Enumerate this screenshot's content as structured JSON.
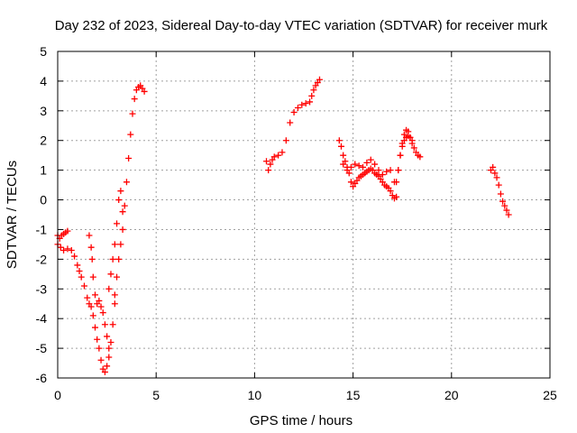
{
  "chart_data": {
    "type": "scatter",
    "title": "Day 232 of 2023, Sidereal Day-to-day VTEC variation (SDTVAR) for receiver murk",
    "xlabel": "GPS time / hours",
    "ylabel": "SDTVAR / TECUs",
    "xlim": [
      0,
      25
    ],
    "ylim": [
      -6,
      5
    ],
    "xticks": [
      0,
      5,
      10,
      15,
      20,
      25
    ],
    "yticks": [
      -6,
      -5,
      -4,
      -3,
      -2,
      -1,
      0,
      1,
      2,
      3,
      4,
      5
    ],
    "grid": true,
    "legend": "none",
    "marker": "plus",
    "color": "#ff0000",
    "segments": [
      {
        "x": [
          0.0,
          0.1,
          0.2,
          0.3,
          0.4,
          0.5
        ],
        "y": [
          -1.2,
          -1.3,
          -1.2,
          -1.15,
          -1.1,
          -1.05
        ]
      },
      {
        "x": [
          0.0,
          0.15,
          0.3,
          0.5,
          0.7,
          0.85,
          1.0,
          1.1,
          1.2,
          1.35,
          1.5,
          1.6,
          1.7,
          1.8,
          1.9,
          2.0,
          2.1,
          2.2,
          2.3,
          2.4,
          2.5,
          2.6
        ],
        "y": [
          -1.5,
          -1.6,
          -1.7,
          -1.65,
          -1.7,
          -1.9,
          -2.2,
          -2.4,
          -2.6,
          -2.9,
          -3.3,
          -3.5,
          -3.6,
          -3.9,
          -4.3,
          -4.7,
          -5.0,
          -5.4,
          -5.7,
          -5.8,
          -5.6,
          -5.3
        ]
      },
      {
        "x": [
          1.6,
          1.7,
          1.75,
          1.8,
          1.9,
          2.0,
          2.1,
          2.2,
          2.3,
          2.4,
          2.5,
          2.6,
          2.7,
          2.8,
          2.9
        ],
        "y": [
          -1.2,
          -1.6,
          -2.0,
          -2.6,
          -3.2,
          -3.5,
          -3.4,
          -3.6,
          -3.8,
          -4.2,
          -4.6,
          -5.0,
          -4.8,
          -4.2,
          -3.5
        ]
      },
      {
        "x": [
          2.6,
          2.7,
          2.8,
          2.9,
          3.0,
          3.1,
          3.2,
          3.3
        ],
        "y": [
          -3.0,
          -2.5,
          -2.0,
          -1.5,
          -0.8,
          0.0,
          0.3,
          -0.4
        ]
      },
      {
        "x": [
          2.9,
          3.0,
          3.1,
          3.2,
          3.3,
          3.4,
          3.5,
          3.6,
          3.7,
          3.8,
          3.9,
          4.0,
          4.1,
          4.2,
          4.3,
          4.4
        ],
        "y": [
          -3.2,
          -2.6,
          -2.0,
          -1.5,
          -1.0,
          -0.2,
          0.6,
          1.4,
          2.2,
          2.9,
          3.4,
          3.7,
          3.8,
          3.85,
          3.75,
          3.65
        ]
      },
      {
        "x": [
          10.6,
          10.7,
          10.8,
          10.9,
          11.0,
          11.2,
          11.4,
          11.6,
          11.8,
          12.0,
          12.2,
          12.4,
          12.6,
          12.8,
          12.9,
          13.0,
          13.1,
          13.2,
          13.3
        ],
        "y": [
          1.3,
          1.0,
          1.2,
          1.35,
          1.45,
          1.5,
          1.6,
          2.0,
          2.6,
          2.95,
          3.1,
          3.2,
          3.25,
          3.3,
          3.5,
          3.7,
          3.85,
          3.95,
          4.05
        ]
      },
      {
        "x": [
          14.3,
          14.4,
          14.5,
          14.6,
          14.7,
          14.8,
          14.9,
          15.0,
          15.1,
          15.2,
          15.3,
          15.4,
          15.5,
          15.6,
          15.7,
          15.8,
          15.9,
          16.0,
          16.1,
          16.2,
          16.3,
          16.4,
          16.5,
          16.6,
          16.7,
          16.8,
          16.9,
          17.0,
          17.1,
          17.2
        ],
        "y": [
          2.0,
          1.8,
          1.5,
          1.3,
          1.1,
          0.9,
          0.6,
          0.45,
          0.55,
          0.65,
          0.75,
          0.8,
          0.85,
          0.9,
          0.95,
          1.0,
          1.05,
          1.0,
          0.9,
          0.85,
          0.8,
          0.7,
          0.6,
          0.5,
          0.45,
          0.4,
          0.3,
          0.15,
          0.05,
          0.1
        ]
      },
      {
        "x": [
          14.5,
          14.7,
          14.9,
          15.1,
          15.3,
          15.5,
          15.7,
          15.9,
          16.1,
          16.3,
          16.5,
          16.7,
          16.9,
          17.1,
          17.3,
          17.4,
          17.5,
          17.6,
          17.7,
          17.8,
          17.9,
          18.0,
          18.1,
          18.2,
          18.3,
          18.4
        ],
        "y": [
          1.2,
          1.0,
          1.1,
          1.2,
          1.15,
          1.1,
          1.25,
          1.35,
          1.2,
          1.0,
          0.85,
          0.95,
          1.0,
          0.6,
          1.0,
          1.5,
          1.9,
          2.2,
          2.35,
          2.3,
          2.1,
          1.9,
          1.75,
          1.6,
          1.5,
          1.45
        ]
      },
      {
        "x": [
          17.2,
          17.3,
          17.4,
          17.5,
          17.6,
          17.7,
          17.8,
          17.9,
          18.0
        ],
        "y": [
          0.6,
          1.0,
          1.5,
          1.8,
          2.0,
          2.1,
          2.15,
          2.1,
          2.0
        ]
      },
      {
        "x": [
          22.0,
          22.1,
          22.2,
          22.3,
          22.4,
          22.5,
          22.6,
          22.7,
          22.8,
          22.9
        ],
        "y": [
          1.0,
          1.1,
          0.9,
          0.75,
          0.5,
          0.2,
          -0.05,
          -0.2,
          -0.35,
          -0.5
        ]
      }
    ]
  }
}
